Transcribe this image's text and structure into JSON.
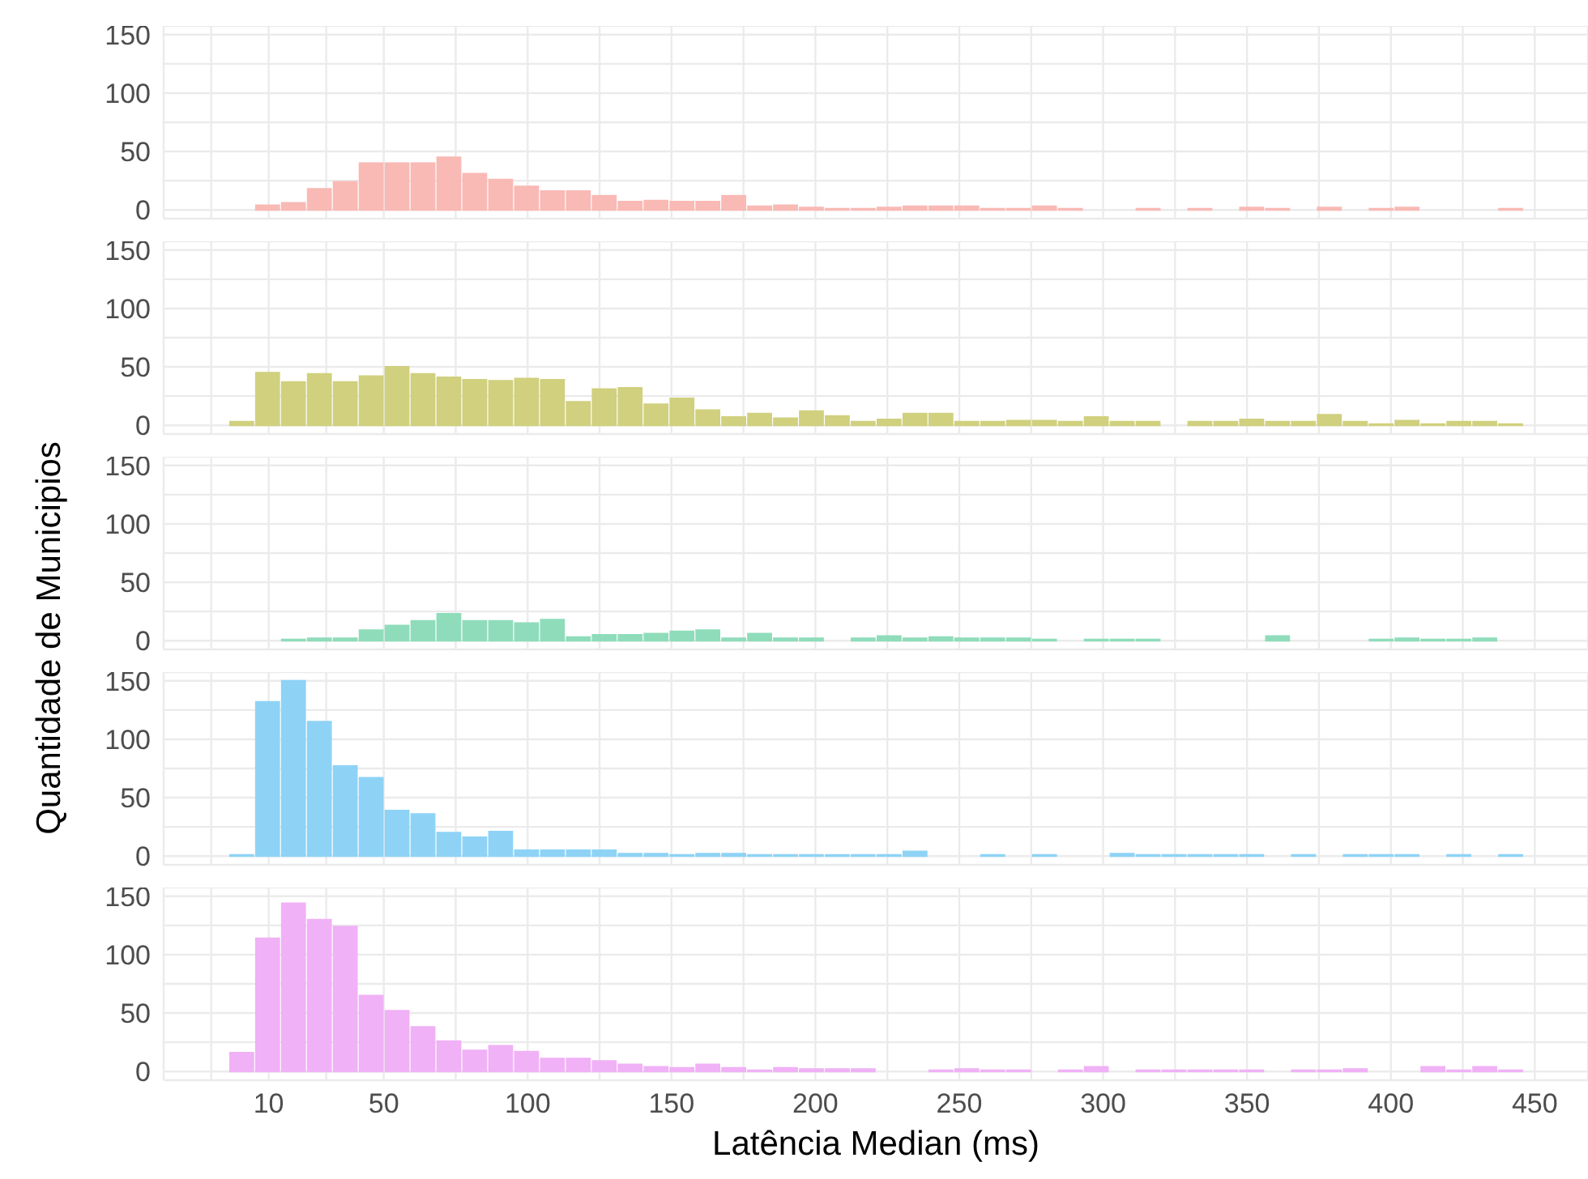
{
  "chart_data": [
    {
      "type": "histogram",
      "color": "#f9b9b5",
      "bins": [
        -4,
        5,
        14,
        23,
        32,
        41,
        50,
        59,
        68,
        77,
        86,
        95,
        104,
        113,
        122,
        131,
        140,
        149,
        158,
        167,
        176,
        185,
        194,
        203,
        212,
        221,
        230,
        239,
        248,
        257,
        266,
        275,
        284,
        293,
        302,
        311,
        320,
        329,
        338,
        347,
        356,
        365,
        374,
        383,
        392,
        401,
        410,
        419,
        428,
        437,
        446
      ],
      "values": [
        0,
        4,
        6,
        18,
        24,
        40,
        40,
        40,
        45,
        31,
        26,
        20,
        16,
        16,
        12,
        7,
        8,
        7,
        7,
        12,
        3,
        4,
        2,
        1,
        1,
        2,
        3,
        3,
        3,
        1,
        1,
        3,
        1,
        0,
        0,
        1,
        0,
        1,
        0,
        2,
        1,
        0,
        2,
        0,
        1,
        2,
        0,
        0,
        0,
        1
      ],
      "xlim": [
        -26.5,
        468.5
      ],
      "xticks": [
        {
          "value": -10,
          "label": null
        },
        10,
        {
          "value": 30,
          "label": null
        },
        50,
        {
          "value": 75,
          "label": null
        },
        100,
        {
          "value": 125,
          "label": null
        },
        150,
        {
          "value": 175,
          "label": null
        },
        200,
        {
          "value": 225,
          "label": null
        },
        250,
        {
          "value": 275,
          "label": null
        },
        300,
        {
          "value": 325,
          "label": null
        },
        350,
        {
          "value": 375,
          "label": null
        },
        400,
        {
          "value": 425,
          "label": null
        },
        450
      ],
      "ylim": [
        -7.5,
        157.5
      ],
      "yticks": [
        0,
        {
          "value": 25,
          "label": null
        },
        50,
        {
          "value": 75,
          "label": null
        },
        100,
        {
          "value": 125,
          "label": null
        },
        150
      ],
      "grid": true,
      "tick_labels": "y"
    },
    {
      "type": "histogram",
      "color": "#d0d07f",
      "bins": [
        -4,
        5,
        14,
        23,
        32,
        41,
        50,
        59,
        68,
        77,
        86,
        95,
        104,
        113,
        122,
        131,
        140,
        149,
        158,
        167,
        176,
        185,
        194,
        203,
        212,
        221,
        230,
        239,
        248,
        257,
        266,
        275,
        284,
        293,
        302,
        311,
        320,
        329,
        338,
        347,
        356,
        365,
        374,
        383,
        392,
        401,
        410,
        419,
        428,
        437,
        446
      ],
      "values": [
        3,
        45,
        37,
        44,
        37,
        42,
        50,
        44,
        41,
        39,
        38,
        40,
        39,
        20,
        31,
        32,
        18,
        23,
        13,
        7,
        10,
        6,
        12,
        8,
        3,
        5,
        10,
        10,
        3,
        3,
        4,
        4,
        3,
        7,
        3,
        3,
        0,
        3,
        3,
        5,
        3,
        3,
        9,
        3,
        1,
        4,
        1,
        3,
        3,
        1
      ],
      "xlim": [
        -26.5,
        468.5
      ],
      "xticks": [
        {
          "value": -10,
          "label": null
        },
        10,
        {
          "value": 30,
          "label": null
        },
        50,
        {
          "value": 75,
          "label": null
        },
        100,
        {
          "value": 125,
          "label": null
        },
        150,
        {
          "value": 175,
          "label": null
        },
        200,
        {
          "value": 225,
          "label": null
        },
        250,
        {
          "value": 275,
          "label": null
        },
        300,
        {
          "value": 325,
          "label": null
        },
        350,
        {
          "value": 375,
          "label": null
        },
        400,
        {
          "value": 425,
          "label": null
        },
        450
      ],
      "ylim": [
        -7.5,
        157.5
      ],
      "yticks": [
        0,
        {
          "value": 25,
          "label": null
        },
        50,
        {
          "value": 75,
          "label": null
        },
        100,
        {
          "value": 125,
          "label": null
        },
        150
      ],
      "grid": true,
      "tick_labels": "y"
    },
    {
      "type": "histogram",
      "color": "#8fdcbb",
      "ylabel": "Quantidade de Municipios",
      "bins": [
        -4,
        5,
        14,
        23,
        32,
        41,
        50,
        59,
        68,
        77,
        86,
        95,
        104,
        113,
        122,
        131,
        140,
        149,
        158,
        167,
        176,
        185,
        194,
        203,
        212,
        221,
        230,
        239,
        248,
        257,
        266,
        275,
        284,
        293,
        302,
        311,
        320,
        329,
        338,
        347,
        356,
        365,
        374,
        383,
        392,
        401,
        410,
        419,
        428,
        437,
        446
      ],
      "values": [
        0,
        0,
        1,
        2,
        2,
        9,
        13,
        17,
        23,
        17,
        17,
        15,
        18,
        3,
        5,
        5,
        6,
        8,
        9,
        2,
        6,
        2,
        2,
        0,
        2,
        4,
        2,
        3,
        2,
        2,
        2,
        1,
        0,
        1,
        1,
        1,
        0,
        0,
        0,
        0,
        4,
        0,
        0,
        0,
        1,
        2,
        1,
        1,
        2,
        0
      ],
      "xlim": [
        -26.5,
        468.5
      ],
      "xticks": [
        {
          "value": -10,
          "label": null
        },
        10,
        {
          "value": 30,
          "label": null
        },
        50,
        {
          "value": 75,
          "label": null
        },
        100,
        {
          "value": 125,
          "label": null
        },
        150,
        {
          "value": 175,
          "label": null
        },
        200,
        {
          "value": 225,
          "label": null
        },
        250,
        {
          "value": 275,
          "label": null
        },
        300,
        {
          "value": 325,
          "label": null
        },
        350,
        {
          "value": 375,
          "label": null
        },
        400,
        {
          "value": 425,
          "label": null
        },
        450
      ],
      "ylim": [
        -7.5,
        157.5
      ],
      "yticks": [
        0,
        {
          "value": 25,
          "label": null
        },
        50,
        {
          "value": 75,
          "label": null
        },
        100,
        {
          "value": 125,
          "label": null
        },
        150
      ],
      "grid": true,
      "tick_labels": "y"
    },
    {
      "type": "histogram",
      "color": "#8ed3f6",
      "bins": [
        -4,
        5,
        14,
        23,
        32,
        41,
        50,
        59,
        68,
        77,
        86,
        95,
        104,
        113,
        122,
        131,
        140,
        149,
        158,
        167,
        176,
        185,
        194,
        203,
        212,
        221,
        230,
        239,
        248,
        257,
        266,
        275,
        284,
        293,
        302,
        311,
        320,
        329,
        338,
        347,
        356,
        365,
        374,
        383,
        392,
        401,
        410,
        419,
        428,
        437,
        446
      ],
      "values": [
        1,
        132,
        150,
        115,
        77,
        67,
        39,
        36,
        20,
        16,
        21,
        5,
        5,
        5,
        5,
        2,
        2,
        1,
        2,
        2,
        1,
        1,
        1,
        1,
        1,
        1,
        4,
        0,
        0,
        1,
        0,
        1,
        0,
        0,
        2,
        1,
        1,
        1,
        1,
        1,
        0,
        1,
        0,
        1,
        1,
        1,
        0,
        1,
        0,
        1
      ],
      "xlim": [
        -26.5,
        468.5
      ],
      "xticks": [
        {
          "value": -10,
          "label": null
        },
        10,
        {
          "value": 30,
          "label": null
        },
        50,
        {
          "value": 75,
          "label": null
        },
        100,
        {
          "value": 125,
          "label": null
        },
        150,
        {
          "value": 175,
          "label": null
        },
        200,
        {
          "value": 225,
          "label": null
        },
        250,
        {
          "value": 275,
          "label": null
        },
        300,
        {
          "value": 325,
          "label": null
        },
        350,
        {
          "value": 375,
          "label": null
        },
        400,
        {
          "value": 425,
          "label": null
        },
        450
      ],
      "ylim": [
        -7.5,
        157.5
      ],
      "yticks": [
        0,
        {
          "value": 25,
          "label": null
        },
        50,
        {
          "value": 75,
          "label": null
        },
        100,
        {
          "value": 125,
          "label": null
        },
        150
      ],
      "grid": true,
      "tick_labels": "y"
    },
    {
      "type": "histogram",
      "color": "#f0b1f6",
      "xlabel": "Latência Median (ms)",
      "bins": [
        -4,
        5,
        14,
        23,
        32,
        41,
        50,
        59,
        68,
        77,
        86,
        95,
        104,
        113,
        122,
        131,
        140,
        149,
        158,
        167,
        176,
        185,
        194,
        203,
        212,
        221,
        230,
        239,
        248,
        257,
        266,
        275,
        284,
        293,
        302,
        311,
        320,
        329,
        338,
        347,
        356,
        365,
        374,
        383,
        392,
        401,
        410,
        419,
        428,
        437,
        446
      ],
      "values": [
        16,
        114,
        144,
        130,
        124,
        65,
        52,
        38,
        26,
        18,
        22,
        17,
        11,
        11,
        9,
        6,
        4,
        3,
        6,
        3,
        1,
        3,
        2,
        2,
        2,
        0,
        0,
        1,
        2,
        1,
        1,
        0,
        1,
        4,
        0,
        1,
        1,
        1,
        1,
        1,
        0,
        1,
        1,
        2,
        0,
        0,
        4,
        1,
        4,
        1
      ],
      "xlim": [
        -26.5,
        468.5
      ],
      "xticks": [
        {
          "value": -10,
          "label": null
        },
        10,
        {
          "value": 30,
          "label": null
        },
        50,
        {
          "value": 75,
          "label": null
        },
        100,
        {
          "value": 125,
          "label": null
        },
        150,
        {
          "value": 175,
          "label": null
        },
        200,
        {
          "value": 225,
          "label": null
        },
        250,
        {
          "value": 275,
          "label": null
        },
        300,
        {
          "value": 325,
          "label": null
        },
        350,
        {
          "value": 375,
          "label": null
        },
        400,
        {
          "value": 425,
          "label": null
        },
        450
      ],
      "ylim": [
        -7.5,
        157.5
      ],
      "yticks": [
        0,
        {
          "value": 25,
          "label": null
        },
        50,
        {
          "value": 75,
          "label": null
        },
        100,
        {
          "value": 125,
          "label": null
        },
        150
      ],
      "grid": true
    }
  ]
}
